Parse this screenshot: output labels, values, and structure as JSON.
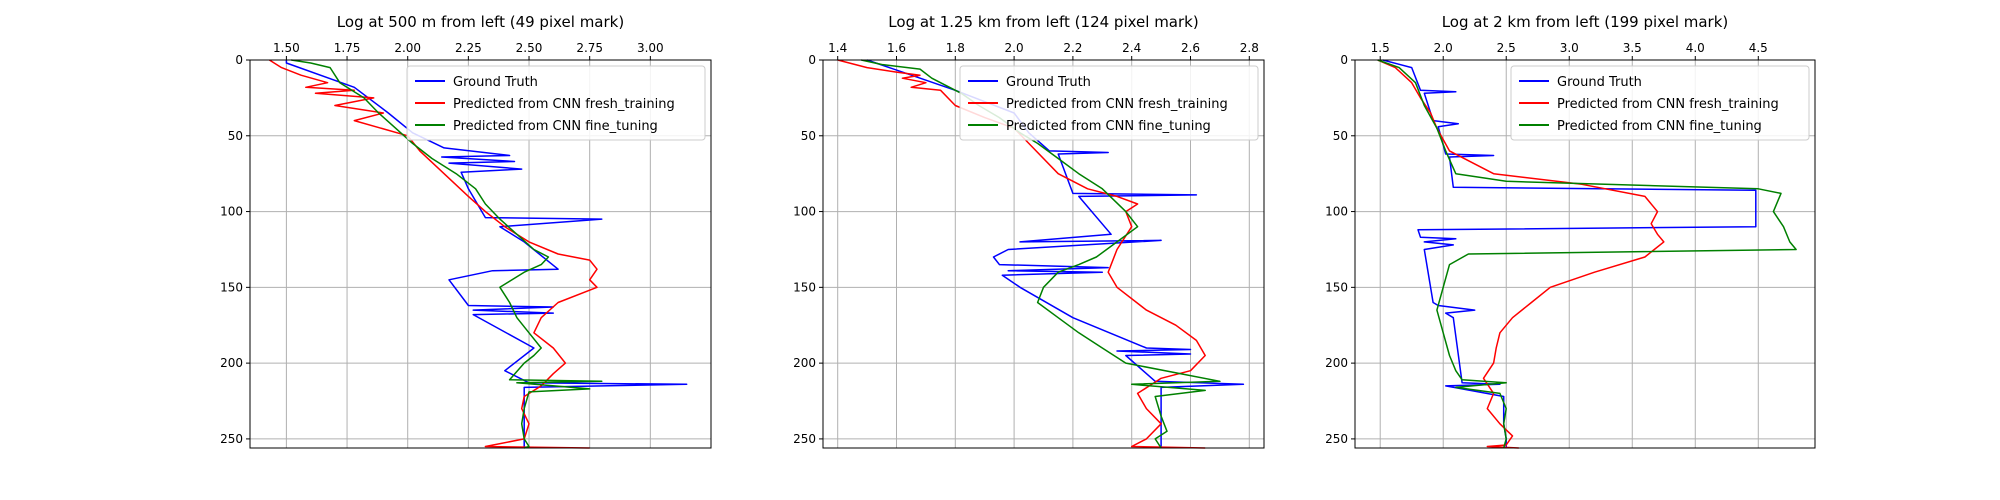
{
  "chart_data": [
    {
      "type": "line",
      "title": "Log at 500 m from left (49 pixel mark)",
      "xlabel": "",
      "ylabel": "",
      "xlim": [
        1.35,
        3.25
      ],
      "ylim": [
        256,
        0
      ],
      "xticks": [
        1.5,
        1.75,
        2.0,
        2.25,
        2.5,
        2.75,
        3.0
      ],
      "xtick_labels": [
        "1.50",
        "1.75",
        "2.00",
        "2.25",
        "2.50",
        "2.75",
        "3.00"
      ],
      "yticks": [
        0,
        50,
        100,
        150,
        200,
        250
      ],
      "ytick_labels": [
        "0",
        "50",
        "100",
        "150",
        "200",
        "250"
      ],
      "grid": true,
      "legend_position": "top-right",
      "series": [
        {
          "name": "Ground Truth",
          "color": "#0000ff",
          "x": [
            1.5,
            1.5,
            1.78,
            1.92,
            2.02,
            2.15,
            2.42,
            2.14,
            2.44,
            2.17,
            2.47,
            2.22,
            2.25,
            2.32,
            2.8,
            2.38,
            2.48,
            2.62,
            2.35,
            2.17,
            2.25,
            2.6,
            2.27,
            2.6,
            2.27,
            2.52,
            2.4,
            2.5,
            3.15,
            2.48,
            2.48,
            2.48
          ],
          "y": [
            0,
            2,
            18,
            35,
            48,
            58,
            63,
            64,
            67,
            68,
            72,
            74,
            85,
            104,
            105,
            110,
            120,
            138,
            139,
            145,
            162,
            163,
            165,
            167,
            168,
            190,
            205,
            213,
            214,
            216,
            240,
            256
          ]
        },
        {
          "name": "Predicted from CNN fresh_training",
          "color": "#ff0000",
          "x": [
            1.43,
            1.48,
            1.56,
            1.67,
            1.58,
            1.78,
            1.62,
            1.86,
            1.7,
            1.9,
            1.78,
            2.0,
            2.05,
            2.15,
            2.25,
            2.32,
            2.4,
            2.5,
            2.62,
            2.75,
            2.78,
            2.75,
            2.78,
            2.62,
            2.55,
            2.52,
            2.6,
            2.65,
            2.6,
            2.55,
            2.48,
            2.47,
            2.5,
            2.48,
            2.32,
            2.75
          ],
          "y": [
            0,
            5,
            10,
            15,
            18,
            20,
            22,
            25,
            30,
            35,
            40,
            50,
            60,
            75,
            90,
            100,
            110,
            120,
            128,
            132,
            138,
            145,
            150,
            160,
            170,
            180,
            190,
            200,
            207,
            215,
            222,
            230,
            240,
            250,
            255,
            256
          ]
        },
        {
          "name": "Predicted from CNN fine_tuning",
          "color": "#008000",
          "x": [
            1.52,
            1.6,
            1.68,
            1.72,
            1.82,
            1.88,
            1.95,
            2.02,
            2.1,
            2.2,
            2.28,
            2.32,
            2.38,
            2.45,
            2.52,
            2.58,
            2.55,
            2.48,
            2.38,
            2.42,
            2.45,
            2.5,
            2.55,
            2.52,
            2.48,
            2.42,
            2.8,
            2.45,
            2.75,
            2.5,
            2.48,
            2.47,
            2.48,
            2.5,
            2.48
          ],
          "y": [
            0,
            2,
            5,
            15,
            25,
            35,
            45,
            55,
            65,
            75,
            85,
            95,
            105,
            115,
            125,
            130,
            135,
            140,
            150,
            160,
            170,
            180,
            190,
            195,
            200,
            211,
            212,
            213,
            217,
            219,
            230,
            240,
            250,
            255,
            256
          ]
        }
      ]
    },
    {
      "type": "line",
      "title": "Log at 1.25 km from left (124 pixel mark)",
      "xlabel": "",
      "ylabel": "",
      "xlim": [
        1.35,
        2.85
      ],
      "ylim": [
        256,
        0
      ],
      "xticks": [
        1.4,
        1.6,
        1.8,
        2.0,
        2.2,
        2.4,
        2.6,
        2.8
      ],
      "xtick_labels": [
        "1.4",
        "1.6",
        "1.8",
        "2.0",
        "2.2",
        "2.4",
        "2.6",
        "2.8"
      ],
      "yticks": [
        0,
        50,
        100,
        150,
        200,
        250
      ],
      "ytick_labels": [
        "0",
        "50",
        "100",
        "150",
        "200",
        "250"
      ],
      "grid": true,
      "legend_position": "top-right",
      "series": [
        {
          "name": "Ground Truth",
          "color": "#0000ff",
          "x": [
            1.5,
            1.62,
            1.8,
            2.0,
            2.05,
            2.12,
            2.32,
            2.15,
            2.2,
            2.62,
            2.22,
            2.33,
            2.02,
            2.5,
            1.98,
            1.93,
            1.95,
            2.32,
            1.98,
            2.3,
            1.96,
            2.02,
            2.2,
            2.45,
            2.6,
            2.35,
            2.6,
            2.38,
            2.48,
            2.78,
            2.5,
            2.5,
            2.5
          ],
          "y": [
            0,
            8,
            20,
            35,
            48,
            60,
            61,
            62,
            88,
            89,
            90,
            115,
            120,
            119,
            125,
            130,
            135,
            137,
            139,
            140,
            142,
            150,
            170,
            190,
            191,
            192,
            194,
            195,
            212,
            214,
            216,
            240,
            256
          ]
        },
        {
          "name": "Predicted from CNN fresh_training",
          "color": "#ff0000",
          "x": [
            1.4,
            1.5,
            1.6,
            1.68,
            1.62,
            1.7,
            1.65,
            1.75,
            1.8,
            1.9,
            2.0,
            2.05,
            2.15,
            2.25,
            2.35,
            2.42,
            2.38,
            2.4,
            2.35,
            2.32,
            2.35,
            2.45,
            2.55,
            2.62,
            2.65,
            2.6,
            2.5,
            2.42,
            2.45,
            2.5,
            2.45,
            2.4,
            2.65
          ],
          "y": [
            0,
            5,
            8,
            10,
            12,
            15,
            18,
            20,
            30,
            38,
            45,
            55,
            75,
            85,
            90,
            95,
            100,
            110,
            125,
            140,
            150,
            165,
            175,
            185,
            195,
            205,
            210,
            220,
            230,
            240,
            250,
            255,
            256
          ]
        },
        {
          "name": "Predicted from CNN fine_tuning",
          "color": "#008000",
          "x": [
            1.48,
            1.55,
            1.68,
            1.72,
            1.82,
            1.88,
            1.95,
            2.02,
            2.08,
            2.15,
            2.22,
            2.3,
            2.38,
            2.42,
            2.35,
            2.28,
            2.22,
            2.15,
            2.1,
            2.08,
            2.15,
            2.22,
            2.3,
            2.38,
            2.7,
            2.4,
            2.65,
            2.48,
            2.5,
            2.52,
            2.48,
            2.5
          ],
          "y": [
            0,
            3,
            6,
            12,
            22,
            30,
            38,
            48,
            55,
            65,
            75,
            85,
            100,
            110,
            120,
            130,
            135,
            140,
            150,
            160,
            170,
            180,
            190,
            200,
            212,
            214,
            218,
            222,
            235,
            245,
            250,
            256
          ]
        }
      ]
    },
    {
      "type": "line",
      "title": "Log at 2 km from left (199 pixel mark)",
      "xlabel": "",
      "ylabel": "",
      "xlim": [
        1.3,
        4.95
      ],
      "ylim": [
        256,
        0
      ],
      "xticks": [
        1.5,
        2.0,
        2.5,
        3.0,
        3.5,
        4.0,
        4.5
      ],
      "xtick_labels": [
        "1.5",
        "2.0",
        "2.5",
        "3.0",
        "3.5",
        "4.0",
        "4.5"
      ],
      "yticks": [
        0,
        50,
        100,
        150,
        200,
        250
      ],
      "ytick_labels": [
        "0",
        "50",
        "100",
        "150",
        "200",
        "250"
      ],
      "grid": true,
      "legend_position": "top-right",
      "series": [
        {
          "name": "Ground Truth",
          "color": "#0000ff",
          "x": [
            1.52,
            1.75,
            1.82,
            2.1,
            1.85,
            1.92,
            2.12,
            1.96,
            2.02,
            2.4,
            2.05,
            2.08,
            4.48,
            4.48,
            1.8,
            1.82,
            2.1,
            1.85,
            2.08,
            1.85,
            1.92,
            1.96,
            2.25,
            2.02,
            2.08,
            2.15,
            2.45,
            2.02,
            2.48,
            2.48,
            2.5,
            2.5
          ],
          "y": [
            0,
            5,
            20,
            21,
            22,
            40,
            42,
            44,
            62,
            63,
            64,
            84,
            86,
            110,
            112,
            117,
            118,
            120,
            122,
            125,
            160,
            162,
            165,
            167,
            170,
            213,
            214,
            215,
            222,
            240,
            250,
            256
          ]
        },
        {
          "name": "Predicted from CNN fresh_training",
          "color": "#ff0000",
          "x": [
            1.48,
            1.62,
            1.75,
            1.82,
            1.9,
            1.95,
            2.05,
            2.4,
            3.1,
            3.6,
            3.7,
            3.65,
            3.7,
            3.75,
            3.6,
            3.2,
            2.85,
            2.7,
            2.55,
            2.45,
            2.42,
            2.4,
            2.32,
            2.4,
            2.35,
            2.45,
            2.55,
            2.5,
            2.35,
            2.6
          ],
          "y": [
            0,
            5,
            15,
            25,
            35,
            45,
            60,
            75,
            82,
            90,
            100,
            108,
            115,
            120,
            130,
            140,
            150,
            160,
            170,
            180,
            190,
            200,
            210,
            220,
            230,
            240,
            248,
            254,
            255,
            256
          ]
        },
        {
          "name": "Predicted from CNN fine_tuning",
          "color": "#008000",
          "x": [
            1.48,
            1.65,
            1.78,
            1.85,
            1.95,
            2.02,
            2.1,
            2.5,
            4.5,
            4.68,
            4.62,
            4.7,
            4.75,
            4.8,
            2.2,
            2.05,
            2.0,
            1.95,
            2.0,
            2.05,
            2.1,
            2.15,
            2.5,
            2.1,
            2.45,
            2.5,
            2.48,
            2.5,
            2.48
          ],
          "y": [
            0,
            5,
            15,
            30,
            45,
            60,
            75,
            80,
            85,
            88,
            100,
            110,
            120,
            125,
            128,
            135,
            150,
            165,
            180,
            195,
            205,
            211,
            213,
            216,
            220,
            230,
            240,
            250,
            256
          ]
        }
      ]
    }
  ]
}
